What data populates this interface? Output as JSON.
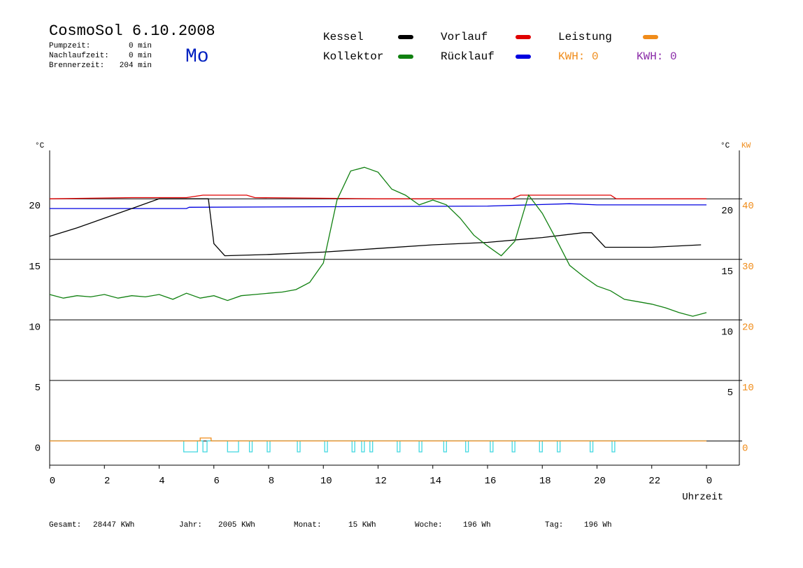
{
  "header": {
    "title": "CosmoSol 6.10.2008",
    "day": "Mo",
    "info": [
      {
        "label": "Pumpzeit:",
        "value": "0 min"
      },
      {
        "label": "Nachlaufzeit:",
        "value": "0 min"
      },
      {
        "label": "Brennerzeit:",
        "value": "204 min"
      }
    ]
  },
  "footer": [
    {
      "label": "Gesamt:",
      "value": "28447 KWh"
    },
    {
      "label": "Jahr:",
      "value": "2005 KWh"
    },
    {
      "label": "Monat:",
      "value": "15 KWh"
    },
    {
      "label": "Woche:",
      "value": "196 Wh"
    },
    {
      "label": "Tag:",
      "value": "196 Wh"
    }
  ],
  "chart_data": {
    "type": "line",
    "y_unit": "°C",
    "y2_unit": "°C",
    "y2_label": "KW",
    "x_label": "Uhrzeit",
    "annotations": [
      {
        "text": "KWH: 0",
        "color": "#f08c1a"
      },
      {
        "text": "KWH: 0",
        "color": "#8a2aa8"
      }
    ],
    "xlim": [
      0,
      24
    ],
    "xticks": [
      0,
      2,
      4,
      6,
      8,
      10,
      12,
      14,
      16,
      18,
      20,
      22,
      {
        "value": 24,
        "label": "0"
      }
    ],
    "ylim": [
      -2,
      24
    ],
    "yticks": [
      0,
      5,
      10,
      15,
      20
    ],
    "y2lim": [
      -4,
      48
    ],
    "y2ticks": [
      0,
      10,
      20,
      30,
      40
    ],
    "grid": true,
    "series": [
      {
        "name": "Kessel",
        "color": "#000000",
        "x": [
          0,
          1,
          2,
          3,
          4,
          5,
          5.8,
          6,
          6.4,
          8,
          10,
          12,
          14,
          16,
          18,
          19.5,
          19.8,
          20.3,
          22,
          23.8
        ],
        "values": [
          16.9,
          17.6,
          18.4,
          19.2,
          20.0,
          20.0,
          20.0,
          16.3,
          15.3,
          15.4,
          15.6,
          15.9,
          16.2,
          16.4,
          16.8,
          17.2,
          17.2,
          16.0,
          16.0,
          16.2
        ]
      },
      {
        "name": "Kollektor",
        "color": "#108010",
        "x": [
          0,
          0.5,
          1,
          1.5,
          2,
          2.5,
          3,
          3.5,
          4,
          4.5,
          5,
          5.5,
          6,
          6.5,
          7,
          7.5,
          8,
          8.5,
          9,
          9.5,
          10,
          10.5,
          11,
          11.5,
          12,
          12.5,
          13,
          13.5,
          14,
          14.5,
          15,
          15.5,
          16,
          16.5,
          17,
          17.5,
          18,
          18.5,
          19,
          19.5,
          20,
          20.5,
          21,
          21.5,
          22,
          22.5,
          23,
          23.5,
          24
        ],
        "values": [
          12.1,
          11.8,
          12.0,
          11.9,
          12.1,
          11.8,
          12.0,
          11.9,
          12.1,
          11.7,
          12.2,
          11.8,
          12.0,
          11.6,
          12.0,
          12.1,
          12.2,
          12.3,
          12.5,
          13.1,
          14.7,
          19.9,
          22.3,
          22.6,
          22.2,
          20.8,
          20.3,
          19.5,
          19.9,
          19.5,
          18.4,
          17.0,
          16.1,
          15.3,
          16.5,
          20.3,
          18.8,
          16.7,
          14.5,
          13.6,
          12.8,
          12.4,
          11.7,
          11.5,
          11.3,
          11.0,
          10.6,
          10.3,
          10.6
        ]
      },
      {
        "name": "Vorlauf",
        "color": "#e00000",
        "x": [
          0,
          3,
          5,
          5.6,
          7.2,
          7.5,
          12,
          14,
          16.9,
          17.2,
          20.5,
          20.7,
          24
        ],
        "values": [
          20.0,
          20.1,
          20.1,
          20.3,
          20.3,
          20.1,
          20.0,
          20.0,
          20.0,
          20.3,
          20.3,
          20.0,
          20.0
        ]
      },
      {
        "name": "Rücklauf",
        "color": "#0000e0",
        "x": [
          0,
          5,
          5.1,
          16,
          19,
          20,
          24
        ],
        "values": [
          19.2,
          19.2,
          19.3,
          19.4,
          19.6,
          19.5,
          19.5
        ]
      },
      {
        "name": "Leistung",
        "color": "#f08c1a",
        "axis": "y2",
        "x": [
          0,
          5.5,
          5.5,
          5.9,
          5.9,
          24
        ],
        "values": [
          0,
          0,
          0.5,
          0.5,
          0,
          0
        ]
      },
      {
        "color": "#40d8e0",
        "x": [
          0,
          4.9,
          4.9,
          5.4,
          5.4,
          5.6,
          5.6,
          5.75,
          5.75,
          6.5,
          6.5,
          6.9,
          6.9,
          7.3,
          7.3,
          7.4,
          7.4,
          7.95,
          7.95,
          8.05,
          8.05,
          9.05,
          9.05,
          9.15,
          9.15,
          10.05,
          10.05,
          10.15,
          10.15,
          11.05,
          11.05,
          11.15,
          11.15,
          11.4,
          11.4,
          11.5,
          11.5,
          11.7,
          11.7,
          11.8,
          11.8,
          12.7,
          12.7,
          12.8,
          12.8,
          13.5,
          13.5,
          13.6,
          13.6,
          14.4,
          14.4,
          14.5,
          14.5,
          15.2,
          15.2,
          15.3,
          15.3,
          16.1,
          16.1,
          16.2,
          16.2,
          16.9,
          16.9,
          17.0,
          17.0,
          17.9,
          17.9,
          18.0,
          18.0,
          18.55,
          18.55,
          18.65,
          18.65,
          19.75,
          19.75,
          19.85,
          19.85,
          20.55,
          20.55,
          20.65,
          20.65,
          24
        ],
        "values": [
          0,
          0,
          -0.9,
          -0.9,
          0,
          0,
          -0.9,
          -0.9,
          0,
          0,
          -0.9,
          -0.9,
          0,
          0,
          -0.9,
          -0.9,
          0,
          0,
          -0.9,
          -0.9,
          0,
          0,
          -0.9,
          -0.9,
          0,
          0,
          -0.9,
          -0.9,
          0,
          0,
          -0.9,
          -0.9,
          0,
          0,
          -0.9,
          -0.9,
          0,
          0,
          -0.9,
          -0.9,
          0,
          0,
          -0.9,
          -0.9,
          0,
          0,
          -0.9,
          -0.9,
          0,
          0,
          -0.9,
          -0.9,
          0,
          0,
          -0.9,
          -0.9,
          0,
          0,
          -0.9,
          -0.9,
          0,
          0,
          -0.9,
          -0.9,
          0,
          0,
          -0.9,
          -0.9,
          0,
          0,
          -0.9,
          -0.9,
          0,
          0,
          -0.9,
          -0.9,
          0,
          0,
          -0.9,
          -0.9,
          0,
          0
        ]
      }
    ]
  }
}
